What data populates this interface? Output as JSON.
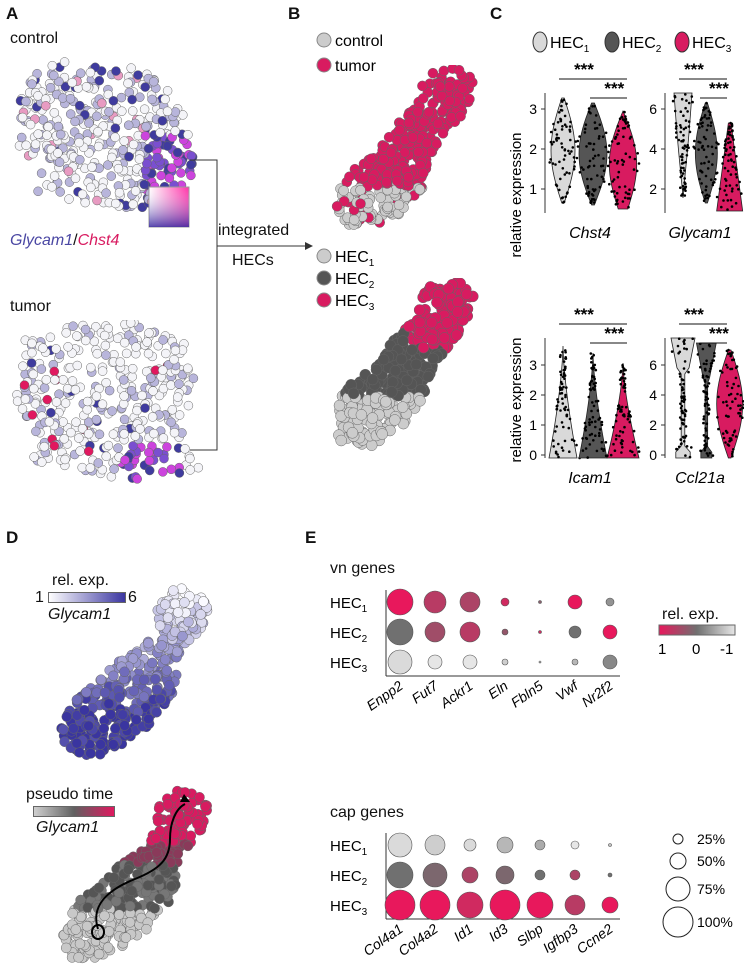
{
  "panels": {
    "a": "A",
    "b": "B",
    "c": "C",
    "d": "D",
    "e": "E"
  },
  "panelA": {
    "control": "control",
    "tumor": "tumor",
    "gene1": "Glycam1",
    "sep": "/",
    "gene2": "Chst4",
    "integrated": "integrated",
    "hecs": "HECs"
  },
  "panelB": {
    "legend1": [
      {
        "label": "control",
        "color": "#cccccc"
      },
      {
        "label": "tumor",
        "color": "#d81b60"
      }
    ],
    "legend2": [
      {
        "label": "HEC",
        "sub": "1",
        "color": "#cccccc"
      },
      {
        "label": "HEC",
        "sub": "2",
        "color": "#555555"
      },
      {
        "label": "HEC",
        "sub": "3",
        "color": "#d81b60"
      }
    ]
  },
  "panelC": {
    "legend": [
      {
        "label": "HEC",
        "sub": "1",
        "color": "#d9d9d9"
      },
      {
        "label": "HEC",
        "sub": "2",
        "color": "#555555"
      },
      {
        "label": "HEC",
        "sub": "3",
        "color": "#d81b60"
      }
    ],
    "ylabel": "relative expression",
    "stars": "***",
    "plots": [
      {
        "gene": "Chst4",
        "ticks": [
          "1",
          "2",
          "3"
        ]
      },
      {
        "gene": "Glycam1",
        "ticks": [
          "2",
          "4",
          "6"
        ]
      },
      {
        "gene": "Icam1",
        "ticks": [
          "0",
          "1",
          "2",
          "3"
        ]
      },
      {
        "gene": "Ccl21a",
        "ticks": [
          "0",
          "2",
          "4",
          "6"
        ]
      }
    ]
  },
  "panelD": {
    "relexp": "rel. exp.",
    "min": "1",
    "max": "6",
    "gene": "Glycam1",
    "pseudotime": "pseudo time",
    "gene2": "Glycam1"
  },
  "panelE": {
    "vn_title": "vn genes",
    "cap_title": "cap genes",
    "rows": [
      {
        "label": "HEC",
        "sub": "1"
      },
      {
        "label": "HEC",
        "sub": "2"
      },
      {
        "label": "HEC",
        "sub": "3"
      }
    ],
    "vn_genes": [
      "Enpp2",
      "Fut7",
      "Ackr1",
      "Eln",
      "Fbln5",
      "Vwf",
      "Nr2f2"
    ],
    "cap_genes": [
      "Col4a1",
      "Col4a2",
      "Id1",
      "Id3",
      "Slbp",
      "Igfbp3",
      "Ccne2"
    ],
    "relexp": "rel. exp.",
    "scale": [
      "1",
      "0",
      "-1"
    ],
    "sizes": [
      "25%",
      "50%",
      "75%",
      "100%"
    ]
  }
}
